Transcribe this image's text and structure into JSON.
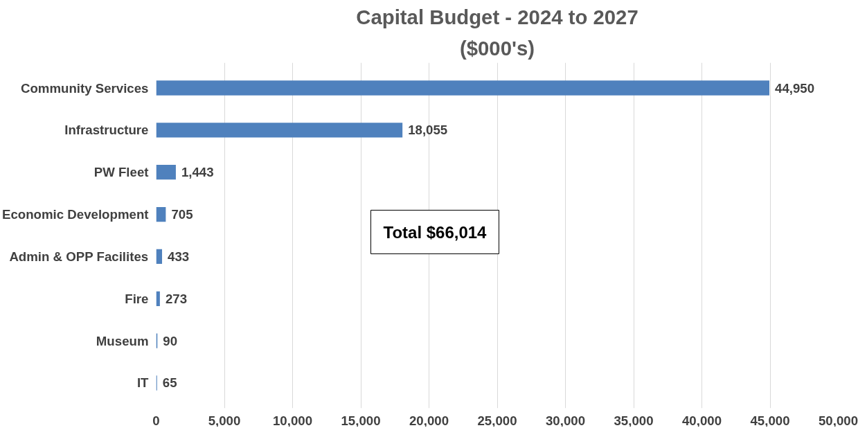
{
  "chart_data": {
    "type": "bar",
    "orientation": "horizontal",
    "title": "Capital Budget - 2024 to 2027",
    "subtitle": "($000's)",
    "categories": [
      "Community Services",
      "Infrastructure",
      "PW Fleet",
      "Economic Development",
      "Admin & OPP Facilites",
      "Fire",
      "Museum",
      "IT"
    ],
    "values": [
      44950,
      18055,
      1443,
      705,
      433,
      273,
      90,
      65
    ],
    "value_labels": [
      "44,950",
      "18,055",
      "1,443",
      "705",
      "433",
      "273",
      "90",
      "65"
    ],
    "color": "#4f81bd",
    "xlim": [
      0,
      50000
    ],
    "xticks": [
      {
        "value": 0,
        "label": "0"
      },
      {
        "value": 5000,
        "label": "5,000"
      },
      {
        "value": 10000,
        "label": "10,000"
      },
      {
        "value": 15000,
        "label": "15,000"
      },
      {
        "value": 20000,
        "label": "20,000"
      },
      {
        "value": 25000,
        "label": "25,000"
      },
      {
        "value": 30000,
        "label": "30,000"
      },
      {
        "value": 35000,
        "label": "35,000"
      },
      {
        "value": 40000,
        "label": "40,000"
      },
      {
        "value": 45000,
        "label": "45,000"
      },
      {
        "value": 50000,
        "label": "50,000"
      }
    ],
    "grid": "x",
    "annotations": [
      "Total $66,014"
    ]
  }
}
